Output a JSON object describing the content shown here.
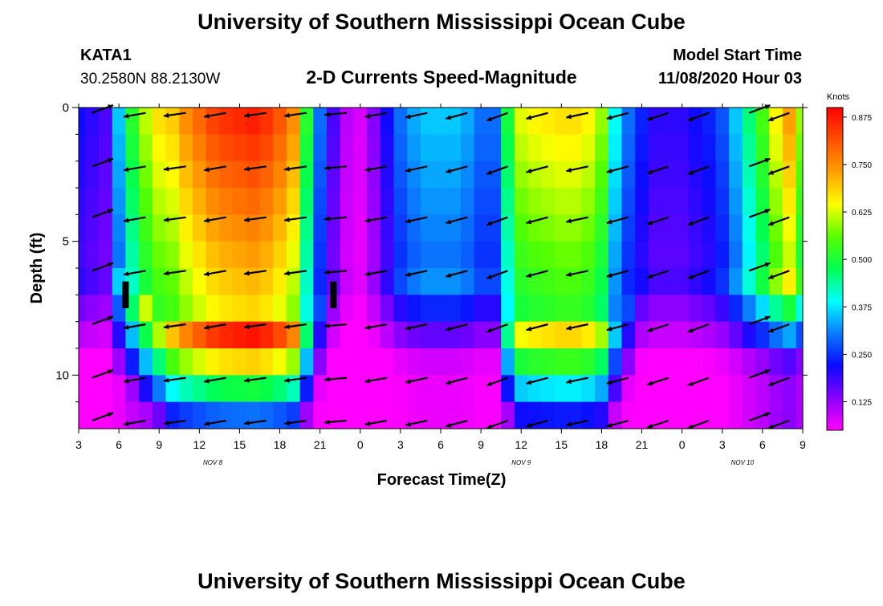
{
  "header": {
    "title_top": "University of Southern Mississippi Ocean Cube",
    "title_bottom": "University of Southern Mississippi Ocean Cube",
    "station": "KATA1",
    "coords": "30.2580N 88.2130W",
    "model_start_label": "Model Start Time",
    "model_start_value": "11/08/2020 Hour 03"
  },
  "chart_data": {
    "type": "heatmap",
    "title": "2-D Currents Speed-Magnitude",
    "xlabel": "Forecast Time(Z)",
    "ylabel": "Depth (ft)",
    "units": "Knots",
    "x_hours_from_start": [
      0,
      54
    ],
    "x_tick_labels": [
      "3",
      "6",
      "9",
      "12",
      "15",
      "18",
      "21",
      "0",
      "3",
      "6",
      "9",
      "12",
      "15",
      "18",
      "21",
      "0",
      "3",
      "6",
      "9"
    ],
    "date_labels": [
      {
        "text": "NOV 8",
        "hour": 10
      },
      {
        "text": "NOV 9",
        "hour": 33
      },
      {
        "text": "NOV 10",
        "hour": 49.5
      }
    ],
    "y_ticks": [
      0,
      5,
      10
    ],
    "ylim": [
      0,
      12
    ],
    "y_inverted": true,
    "colorbar": {
      "ticks": [
        "0.875",
        "0.750",
        "0.625",
        "0.500",
        "0.375",
        "0.250",
        "0.125"
      ],
      "range": [
        0.05,
        0.9
      ],
      "colors": [
        "#ff00ff",
        "#8a00ff",
        "#0a0aff",
        "#0a7aff",
        "#00ffff",
        "#00ff50",
        "#55ff00",
        "#ffff00",
        "#ffa000",
        "#ff5000",
        "#ff0000"
      ]
    },
    "depths_ft": [
      0.5,
      1.5,
      2.5,
      3.5,
      4.5,
      5.5,
      6.5,
      7.5,
      8.5,
      9.5,
      10.5,
      11.5
    ],
    "speed_profile": {
      "hours": [
        0,
        1,
        2,
        3,
        4,
        5,
        6,
        7,
        8,
        9,
        10,
        11,
        12,
        13,
        14,
        15,
        16,
        17,
        18,
        19,
        20,
        21,
        22,
        23,
        24,
        25,
        26,
        27,
        28,
        29,
        30,
        31,
        32,
        33,
        34,
        35,
        36,
        37,
        38,
        39,
        40,
        41,
        42,
        43,
        44,
        45,
        46,
        47,
        48,
        49,
        50,
        51,
        52,
        53,
        54
      ],
      "surface": [
        0.22,
        0.2,
        0.18,
        0.36,
        0.52,
        0.62,
        0.68,
        0.7,
        0.76,
        0.8,
        0.84,
        0.86,
        0.87,
        0.88,
        0.86,
        0.82,
        0.76,
        0.52,
        0.3,
        0.18,
        0.1,
        0.08,
        0.14,
        0.22,
        0.3,
        0.34,
        0.36,
        0.36,
        0.36,
        0.34,
        0.3,
        0.3,
        0.5,
        0.64,
        0.66,
        0.67,
        0.68,
        0.68,
        0.66,
        0.6,
        0.4,
        0.3,
        0.24,
        0.2,
        0.2,
        0.2,
        0.22,
        0.24,
        0.28,
        0.36,
        0.46,
        0.55,
        0.66,
        0.74,
        0.6
      ],
      "decay_ft": [
        6,
        6,
        6,
        6.5,
        7,
        7.5,
        8,
        8.5,
        8.5,
        8.5,
        8.5,
        8.5,
        8.5,
        8.5,
        8.5,
        8.5,
        8.5,
        8,
        7,
        6,
        6,
        6,
        6,
        6,
        6,
        6,
        6,
        6,
        6,
        6,
        6,
        6,
        8,
        8.5,
        8.5,
        8.5,
        8.5,
        8.5,
        8.5,
        8.5,
        8,
        7,
        6,
        6,
        6,
        6,
        6,
        6,
        6,
        6,
        6,
        6,
        6,
        6,
        6
      ]
    },
    "vectors": {
      "hours": [
        1,
        5,
        8,
        11,
        14,
        17,
        20,
        23,
        26,
        29,
        32,
        35,
        38,
        41,
        44,
        47,
        50,
        53
      ],
      "depths_ft": [
        0.2,
        2.2,
        4.1,
        6.1,
        8.1,
        10.1,
        11.7
      ],
      "direction_deg_by_hour": [
        20,
        190,
        188,
        190,
        188,
        188,
        185,
        190,
        192,
        195,
        200,
        195,
        192,
        195,
        198,
        200,
        20,
        200
      ]
    },
    "markers": [
      {
        "hour": 3.5,
        "depth_from": 6.5,
        "depth_to": 7.5
      },
      {
        "hour": 19.0,
        "depth_from": 6.5,
        "depth_to": 7.5
      }
    ]
  }
}
